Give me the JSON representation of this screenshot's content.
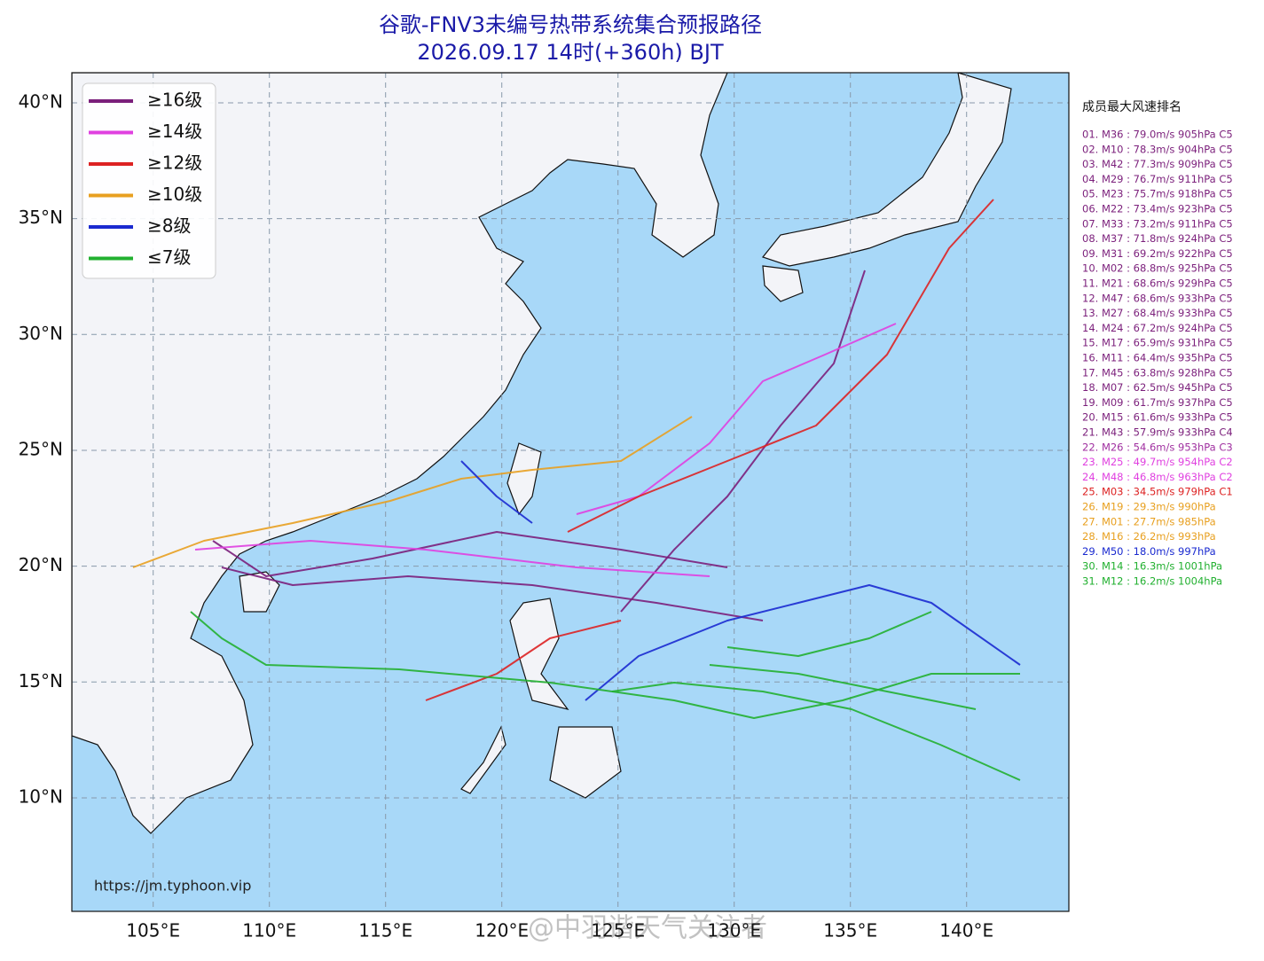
{
  "header": {
    "title": "谷歌-FNV3未编号热带系统集合预报路径",
    "subtitle": "2026.09.17 14时(+360h) BJT"
  },
  "map": {
    "lonlim": [
      101.5,
      144.4
    ],
    "latlim": [
      5.1,
      41.3
    ],
    "lon_ticks": [
      {
        "value": 105,
        "label": "105°E"
      },
      {
        "value": 110,
        "label": "110°E"
      },
      {
        "value": 115,
        "label": "115°E"
      },
      {
        "value": 120,
        "label": "120°E"
      },
      {
        "value": 125,
        "label": "125°E"
      },
      {
        "value": 130,
        "label": "130°E"
      },
      {
        "value": 135,
        "label": "135°E"
      },
      {
        "value": 140,
        "label": "140°E"
      }
    ],
    "lat_ticks": [
      {
        "value": 10,
        "label": "10°N"
      },
      {
        "value": 15,
        "label": "15°N"
      },
      {
        "value": 20,
        "label": "20°N"
      },
      {
        "value": 25,
        "label": "25°N"
      },
      {
        "value": 30,
        "label": "30°N"
      },
      {
        "value": 35,
        "label": "35°N"
      },
      {
        "value": 40,
        "label": "40°N"
      }
    ],
    "grid": true
  },
  "legend": {
    "items": [
      {
        "name": "≥16级",
        "color": "#7b1f7b"
      },
      {
        "name": "≥14级",
        "color": "#e040e0"
      },
      {
        "name": "≥12级",
        "color": "#dd2222"
      },
      {
        "name": "≥10级",
        "color": "#e8a020"
      },
      {
        "name": "≥8级",
        "color": "#1a2ad0"
      },
      {
        "name": "≤7级",
        "color": "#22b030"
      }
    ]
  },
  "ranking": {
    "title": "成员最大风速排名",
    "entries": [
      {
        "text": "01. M36 : 79.0m/s 905hPa C5",
        "color": "#7b1f7b"
      },
      {
        "text": "02. M10 : 78.3m/s 904hPa C5",
        "color": "#7b1f7b"
      },
      {
        "text": "03. M42 : 77.3m/s 909hPa C5",
        "color": "#7b1f7b"
      },
      {
        "text": "04. M29 : 76.7m/s 911hPa C5",
        "color": "#7b1f7b"
      },
      {
        "text": "05. M23 : 75.7m/s 918hPa C5",
        "color": "#7b1f7b"
      },
      {
        "text": "06. M22 : 73.4m/s 923hPa C5",
        "color": "#7b1f7b"
      },
      {
        "text": "07. M33 : 73.2m/s 911hPa C5",
        "color": "#7b1f7b"
      },
      {
        "text": "08. M37 : 71.8m/s 924hPa C5",
        "color": "#7b1f7b"
      },
      {
        "text": "09. M31 : 69.2m/s 922hPa C5",
        "color": "#7b1f7b"
      },
      {
        "text": "10. M02 : 68.8m/s 925hPa C5",
        "color": "#7b1f7b"
      },
      {
        "text": "11. M21 : 68.6m/s 929hPa C5",
        "color": "#7b1f7b"
      },
      {
        "text": "12. M47 : 68.6m/s 933hPa C5",
        "color": "#7b1f7b"
      },
      {
        "text": "13. M27 : 68.4m/s 933hPa C5",
        "color": "#7b1f7b"
      },
      {
        "text": "14. M24 : 67.2m/s 924hPa C5",
        "color": "#7b1f7b"
      },
      {
        "text": "15. M17 : 65.9m/s 931hPa C5",
        "color": "#7b1f7b"
      },
      {
        "text": "16. M11 : 64.4m/s 935hPa C5",
        "color": "#7b1f7b"
      },
      {
        "text": "17. M45 : 63.8m/s 928hPa C5",
        "color": "#7b1f7b"
      },
      {
        "text": "18. M07 : 62.5m/s 945hPa C5",
        "color": "#7b1f7b"
      },
      {
        "text": "19. M09 : 61.7m/s 937hPa C5",
        "color": "#7b1f7b"
      },
      {
        "text": "20. M15 : 61.6m/s 933hPa C5",
        "color": "#7b1f7b"
      },
      {
        "text": "21. M43 : 57.9m/s 933hPa C4",
        "color": "#7b1f7b"
      },
      {
        "text": "22. M26 : 54.6m/s 953hPa C3",
        "color": "#a030a0"
      },
      {
        "text": "23. M25 : 49.7m/s 954hPa C2",
        "color": "#e040e0"
      },
      {
        "text": "24. M48 : 46.8m/s 963hPa C2",
        "color": "#e040e0"
      },
      {
        "text": "25. M03 : 34.5m/s 979hPa C1",
        "color": "#dd2222"
      },
      {
        "text": "26. M19 : 29.3m/s 990hPa",
        "color": "#e8a020"
      },
      {
        "text": "27. M01 : 27.7m/s 985hPa",
        "color": "#e8a020"
      },
      {
        "text": "28. M16 : 26.2m/s 993hPa",
        "color": "#e8a020"
      },
      {
        "text": "29. M50 : 18.0m/s 997hPa",
        "color": "#1a2ad0"
      },
      {
        "text": "30. M14 : 16.3m/s 1001hPa",
        "color": "#22b030"
      },
      {
        "text": "31. M12 : 16.2m/s 1004hPa",
        "color": "#22b030"
      }
    ]
  },
  "source": "https://jm.typhoon.vip",
  "watermark": "@中羽谐天气关注者"
}
